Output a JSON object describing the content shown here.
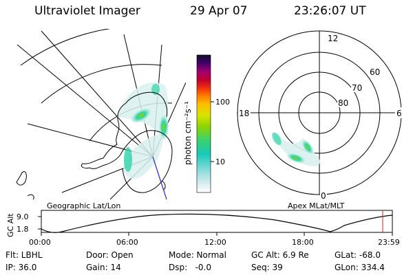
{
  "header": {
    "title": "Ultraviolet Imager",
    "date": "29 Apr 07",
    "time": "23:26:07 UT"
  },
  "colorbar": {
    "unit_label": "photon cm⁻²s⁻¹",
    "tick_labels": [
      "100",
      "10"
    ]
  },
  "geo_panel": {
    "caption": "Geographic Lat/Lon"
  },
  "polar_panel": {
    "caption": "Apex MLat/MLT",
    "mlt_labels": [
      "12",
      "18",
      "6",
      "0"
    ],
    "lat_labels": [
      "60",
      "70",
      "80"
    ]
  },
  "altitude_plot": {
    "ylabel": "GC Alt",
    "y_ticks": [
      "9.0",
      "1.8"
    ],
    "x_ticks": [
      "00:00",
      "06:00",
      "12:00",
      "18:00",
      "23:59"
    ]
  },
  "footer": {
    "filter": "Flt: LBHL",
    "door": "Door: Open",
    "mode": "Mode: Normal",
    "gc_alt": "GC Alt: 6.9 Re",
    "glat": "GLat: -68.0",
    "ip": "IP: 36.0",
    "gain": "Gain: 14",
    "dsp": "Dsp:   -0.0",
    "seq": "Seq: 39",
    "glon": "GLon: 334.4"
  },
  "colors": {
    "low": "#d9f0f0",
    "mid": "#2fd3a6",
    "high": "#8fd400",
    "orbit_marker": "#d02020",
    "nadir_line": "#2020c0"
  }
}
